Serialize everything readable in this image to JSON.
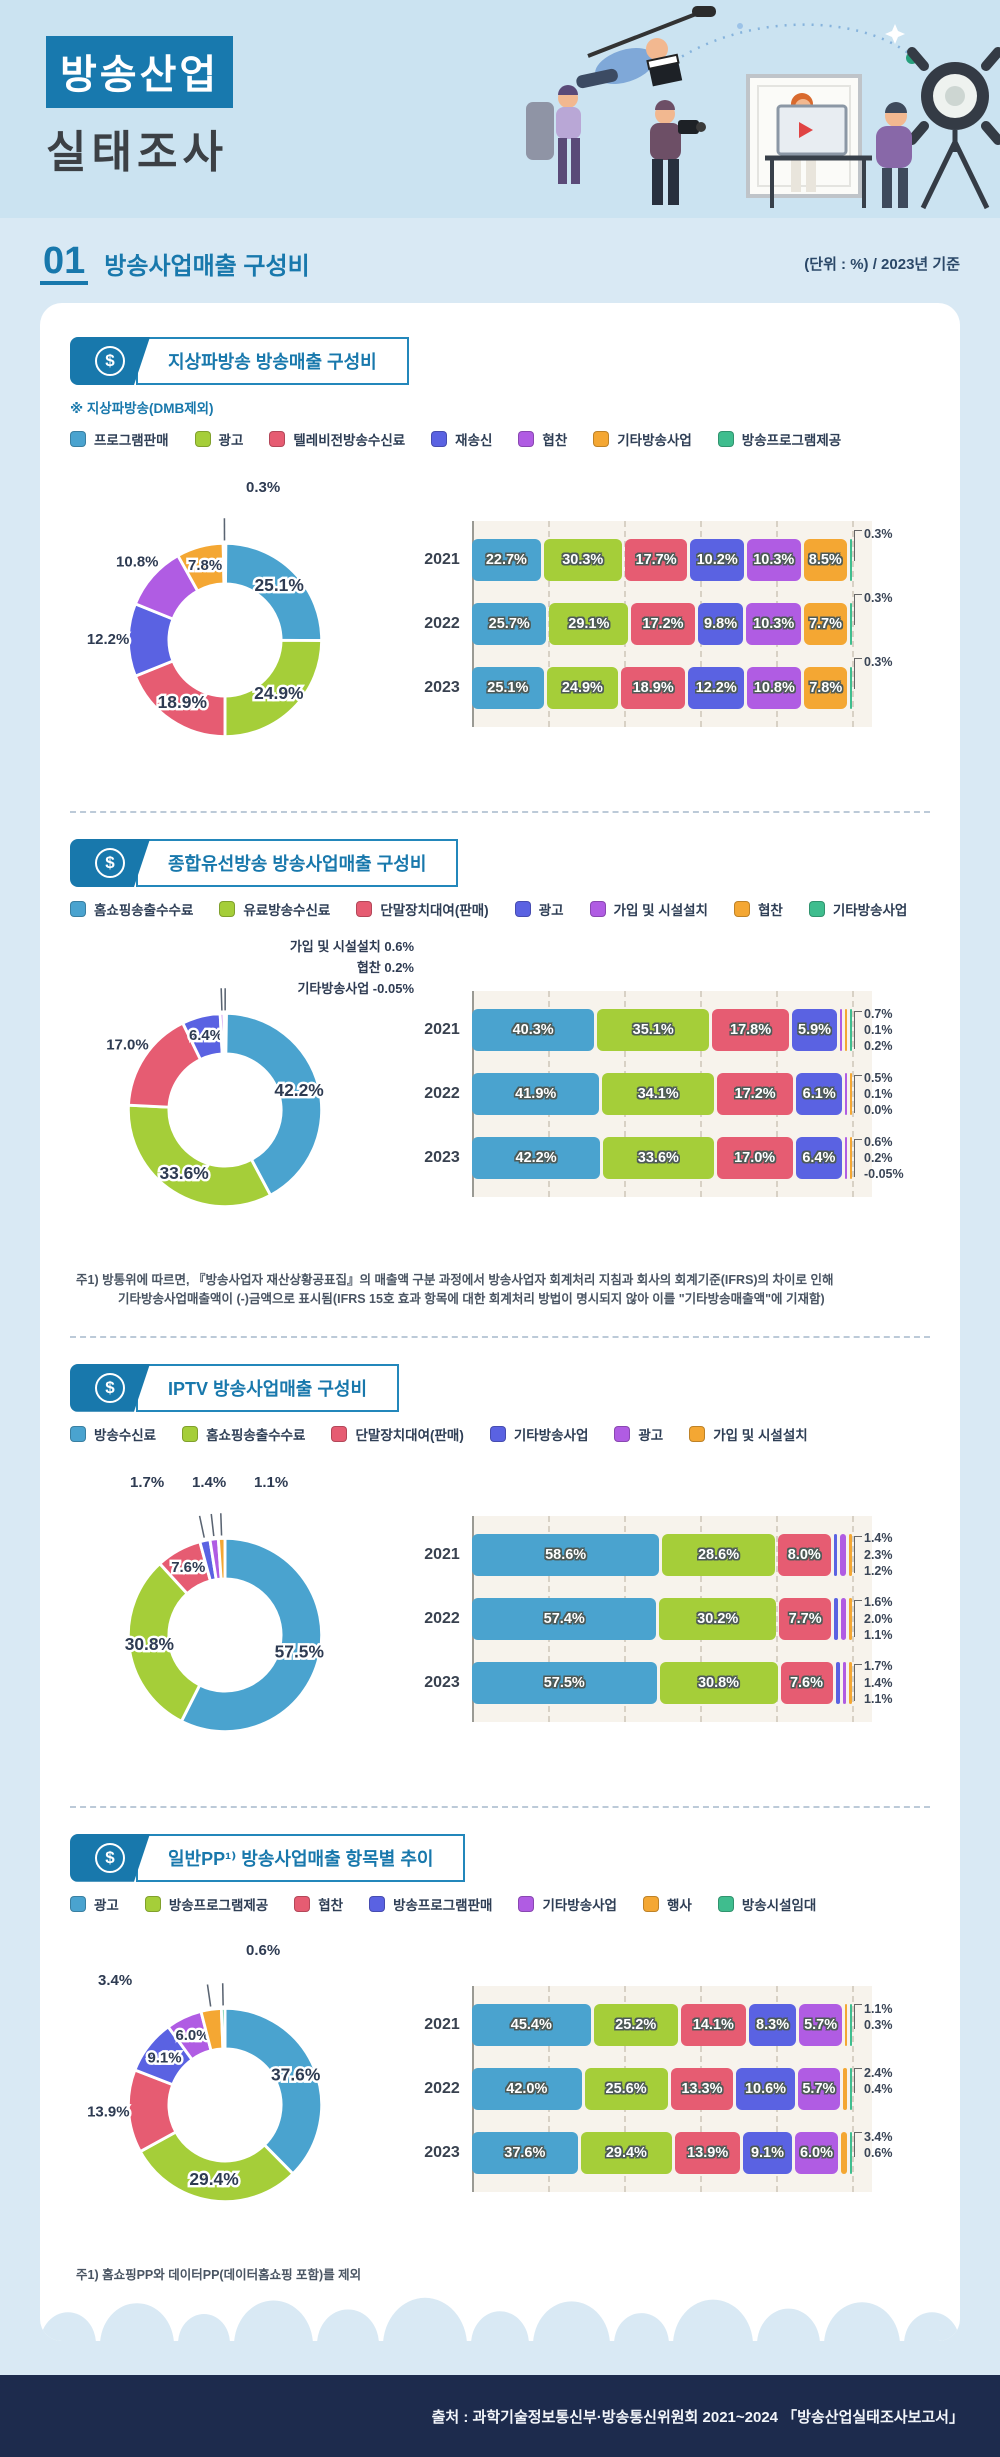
{
  "header": {
    "title_line1": "방송산업",
    "title_line2": "실태조사"
  },
  "section_header": {
    "number": "01",
    "title": "방송사업매출 구성비",
    "unit_note": "(단위 : %) / 2023년 기준"
  },
  "icons": {
    "dollar": "$"
  },
  "colors": {
    "blue": "#4AA3CF",
    "green": "#A5CE39",
    "red": "#E65C72",
    "indigo": "#5A62E2",
    "purple": "#B05CE3",
    "orange": "#F4A733",
    "teal": "#3FBD8E",
    "accent": "#1878AC",
    "footer_bg": "#1D2B4D",
    "plot_bg": "#F7F3EC"
  },
  "sections": [
    {
      "title": "지상파방송 방송매출 구성비",
      "note": "※ 지상파방송(DMB제외)"
    },
    {
      "title": "종합유선방송 방송사업매출 구성비",
      "footnote": {
        "line1": "주1) 방통위에 따르면, 『방송사업자 재산상황공표집』의 매출액 구분 과정에서 방송사업자 회계처리 지침과 회사의 회계기준(IFRS)의 차이로 인해",
        "line2": "기타방송사업매출액이 (-)금액으로 표시됨(IFRS 15호 효과 항목에 대한 회계처리 방법이 명시되지 않아 이를 \"기타방송매출액\"에 기재함)"
      }
    },
    {
      "title": "IPTV 방송사업매출 구성비"
    },
    {
      "title": "일반PP¹⁾ 방송사업매출 항목별 추이",
      "footnote": {
        "line1": "주1) 홈쇼핑PP와 데이터PP(데이터홈쇼핑 포함)를 제외"
      }
    }
  ],
  "chart_data": [
    {
      "type": "donut+stacked-bar",
      "title": "지상파방송 방송매출 구성비",
      "unit": "%",
      "xlim": [
        0,
        100
      ],
      "gridline_step": 20,
      "legend_position": "top",
      "categories": [
        "프로그램판매",
        "광고",
        "텔레비전방송수신료",
        "재송신",
        "협찬",
        "기타방송사업",
        "방송프로그램제공"
      ],
      "series_colors": [
        "#4AA3CF",
        "#A5CE39",
        "#E65C72",
        "#5A62E2",
        "#B05CE3",
        "#F4A733",
        "#3FBD8E"
      ],
      "donut": {
        "year": "2023",
        "values": [
          25.1,
          24.9,
          18.9,
          12.2,
          10.8,
          7.8,
          0.3
        ],
        "callout_labels": [
          "0.3%"
        ]
      },
      "bars": {
        "years": [
          "2021",
          "2022",
          "2023"
        ],
        "rows": [
          {
            "year": "2021",
            "values": [
              22.7,
              30.3,
              17.7,
              10.2,
              10.3,
              8.5,
              0.3
            ],
            "callout_labels": [
              "0.3%"
            ]
          },
          {
            "year": "2022",
            "values": [
              25.7,
              29.1,
              17.2,
              9.8,
              10.3,
              7.7,
              0.3
            ],
            "callout_labels": [
              "0.3%"
            ]
          },
          {
            "year": "2023",
            "values": [
              25.1,
              24.9,
              18.9,
              12.2,
              10.8,
              7.8,
              0.3
            ],
            "callout_labels": [
              "0.3%"
            ]
          }
        ]
      }
    },
    {
      "type": "donut+stacked-bar",
      "title": "종합유선방송 방송사업매출 구성비",
      "unit": "%",
      "xlim": [
        0,
        100
      ],
      "gridline_step": 20,
      "legend_position": "top",
      "categories": [
        "홈쇼핑송출수수료",
        "유료방송수신료",
        "단말장치대여(판매)",
        "광고",
        "가입 및 시설설치",
        "협찬",
        "기타방송사업"
      ],
      "series_colors": [
        "#4AA3CF",
        "#A5CE39",
        "#E65C72",
        "#5A62E2",
        "#B05CE3",
        "#F4A733",
        "#3FBD8E"
      ],
      "donut": {
        "year": "2023",
        "values": [
          42.2,
          33.6,
          17.0,
          6.4,
          0.6,
          0.2,
          -0.05
        ],
        "callout_labels": [
          "가입 및 시설설치 0.6%",
          "협찬 0.2%",
          "기타방송사업 -0.05%"
        ]
      },
      "bars": {
        "years": [
          "2021",
          "2022",
          "2023"
        ],
        "rows": [
          {
            "year": "2021",
            "values": [
              40.3,
              35.1,
              17.8,
              5.9,
              0.7,
              0.1,
              0.2
            ],
            "callout_labels": [
              "0.7%",
              "0.1%",
              "0.2%"
            ]
          },
          {
            "year": "2022",
            "values": [
              41.9,
              34.1,
              17.2,
              6.1,
              0.5,
              0.1,
              0.0
            ],
            "callout_labels": [
              "0.5%",
              "0.1%",
              "0.0%"
            ]
          },
          {
            "year": "2023",
            "values": [
              42.2,
              33.6,
              17.0,
              6.4,
              0.6,
              0.2,
              -0.05
            ],
            "callout_labels": [
              "0.6%",
              "0.2%",
              "-0.05%"
            ]
          }
        ]
      }
    },
    {
      "type": "donut+stacked-bar",
      "title": "IPTV 방송사업매출 구성비",
      "unit": "%",
      "xlim": [
        0,
        100
      ],
      "gridline_step": 20,
      "legend_position": "top",
      "categories": [
        "방송수신료",
        "홈쇼핑송출수수료",
        "단말장치대여(판매)",
        "기타방송사업",
        "광고",
        "가입 및 시설설치"
      ],
      "series_colors": [
        "#4AA3CF",
        "#A5CE39",
        "#E65C72",
        "#5A62E2",
        "#B05CE3",
        "#F4A733"
      ],
      "donut": {
        "year": "2023",
        "values": [
          57.5,
          30.8,
          7.6,
          1.7,
          1.4,
          1.1
        ],
        "callout_labels": [
          "1.7%",
          "1.4%",
          "1.1%"
        ]
      },
      "bars": {
        "years": [
          "2021",
          "2022",
          "2023"
        ],
        "rows": [
          {
            "year": "2021",
            "values": [
              58.6,
              28.6,
              8.0,
              1.4,
              2.3,
              1.2
            ],
            "callout_labels": [
              "1.4%",
              "2.3%",
              "1.2%"
            ]
          },
          {
            "year": "2022",
            "values": [
              57.4,
              30.2,
              7.7,
              1.6,
              2.0,
              1.1
            ],
            "callout_labels": [
              "1.6%",
              "2.0%",
              "1.1%"
            ]
          },
          {
            "year": "2023",
            "values": [
              57.5,
              30.8,
              7.6,
              1.7,
              1.4,
              1.1
            ],
            "callout_labels": [
              "1.7%",
              "1.4%",
              "1.1%"
            ]
          }
        ]
      }
    },
    {
      "type": "donut+stacked-bar",
      "title": "일반PP 방송사업매출 항목별 추이",
      "unit": "%",
      "xlim": [
        0,
        100
      ],
      "gridline_step": 20,
      "legend_position": "top",
      "categories": [
        "광고",
        "방송프로그램제공",
        "협찬",
        "방송프로그램판매",
        "기타방송사업",
        "행사",
        "방송시설임대"
      ],
      "series_colors": [
        "#4AA3CF",
        "#A5CE39",
        "#E65C72",
        "#5A62E2",
        "#B05CE3",
        "#F4A733",
        "#3FBD8E"
      ],
      "donut": {
        "year": "2023",
        "values": [
          37.6,
          29.4,
          13.9,
          9.1,
          6.0,
          3.4,
          0.6
        ],
        "callout_labels": [
          "3.4%",
          "0.6%"
        ]
      },
      "bars": {
        "years": [
          "2021",
          "2022",
          "2023"
        ],
        "rows": [
          {
            "year": "2021",
            "values": [
              45.4,
              25.2,
              14.1,
              8.3,
              5.7,
              1.1,
              0.3
            ],
            "callout_labels": [
              "1.1%",
              "0.3%"
            ]
          },
          {
            "year": "2022",
            "values": [
              42.0,
              25.6,
              13.3,
              10.6,
              5.7,
              2.4,
              0.4
            ],
            "callout_labels": [
              "2.4%",
              "0.4%"
            ]
          },
          {
            "year": "2023",
            "values": [
              37.6,
              29.4,
              13.9,
              9.1,
              6.0,
              3.4,
              0.6
            ],
            "callout_labels": [
              "3.4%",
              "0.6%"
            ]
          }
        ]
      }
    }
  ],
  "footer": {
    "source": "출처 : 과학기술정보통신부·방송통신위원회 2021~2024 「방송산업실태조사보고서」"
  }
}
